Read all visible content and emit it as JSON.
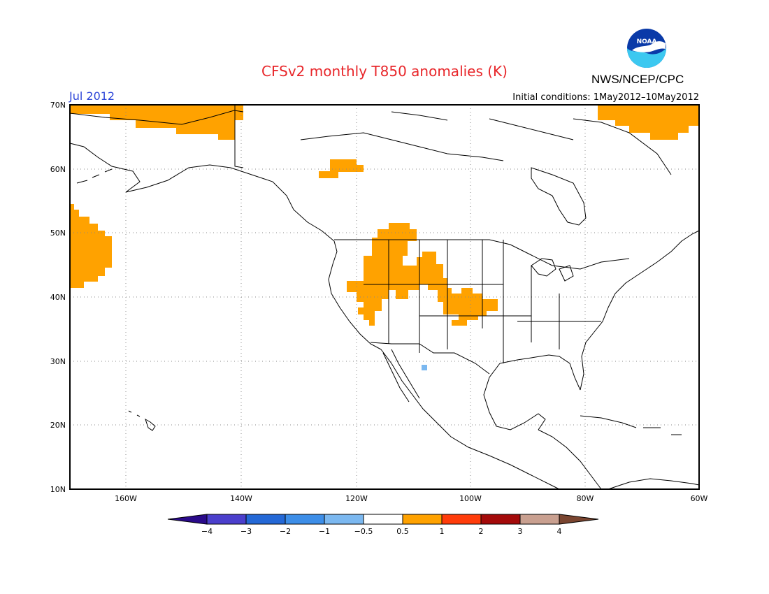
{
  "header": {
    "title": "CFSv2 monthly T850 anomalies (K)",
    "month": "Jul 2012",
    "initial_conditions": "Initial conditions: 1May2012–10May2012",
    "agency": "NWS/NCEP/CPC",
    "logo_text": "NOAA"
  },
  "map": {
    "lon_range": [
      -172,
      -60
    ],
    "lat_range": [
      10,
      70
    ],
    "lat_labels": [
      "10N",
      "20N",
      "30N",
      "40N",
      "50N",
      "60N",
      "70N"
    ],
    "lon_labels": [
      "160W",
      "140W",
      "120W",
      "100W",
      "80W",
      "60W"
    ]
  },
  "colorbar": {
    "labels": [
      "−4",
      "−3",
      "−2",
      "−1",
      "−0.5",
      "0.5",
      "1",
      "2",
      "3",
      "4"
    ],
    "colors": {
      "lt_-4": "#2a0a8a",
      "-4_-3": "#4b3fcc",
      "-3_-2": "#2468d6",
      "-2_-1": "#3d8ee8",
      "-1_-0.5": "#7bb8f0",
      "-0.5_0.5": "#ffffff",
      "0.5_1": "#ffa200",
      "1_2": "#ff3c0a",
      "2_3": "#a40a0a",
      "3_4": "#c9a090",
      "gt_4": "#7a4530"
    }
  },
  "anomaly_colors": {
    "warm": "#ffa200",
    "cool": "#7bb8f0"
  }
}
